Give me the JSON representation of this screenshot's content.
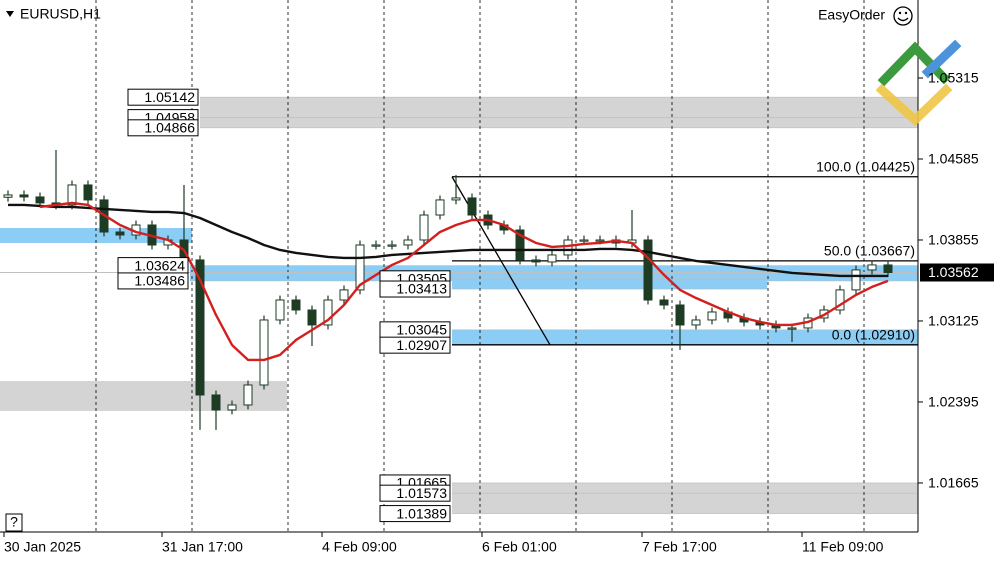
{
  "chart_data": {
    "type": "candlestick",
    "title": "EURUSD,H1",
    "brand": "EasyOrder",
    "help": "?",
    "candle_color": "#1e3b24",
    "open": [
      1.0424,
      1.04261,
      1.04243,
      1.04189,
      1.04171,
      1.04351,
      1.04216,
      1.03927,
      1.039,
      1.0399,
      1.0381,
      1.03855,
      1.03675,
      1.02458,
      1.02323,
      1.02368,
      1.02548,
      1.03134,
      1.03314,
      1.03224,
      1.03089,
      1.03314,
      1.03405,
      1.0381,
      1.0381,
      1.0381,
      1.03855,
      1.0408,
      1.04216,
      1.04234,
      1.0408,
      1.0399,
      1.03945,
      1.03675,
      1.03657,
      1.0372,
      1.03855,
      1.03855,
      1.03855,
      1.03828,
      1.03855,
      1.03314,
      1.03269,
      1.03089,
      1.03134,
      1.03206,
      1.03152,
      1.03116,
      1.03089,
      1.03062,
      1.03062,
      1.03152,
      1.03224,
      1.03405,
      1.03585,
      1.0363
    ],
    "high": [
      1.04301,
      1.04301,
      1.04283,
      1.04666,
      1.04391,
      1.04391,
      1.04256,
      1.03967,
      1.0403,
      1.0403,
      1.03895,
      1.04351,
      1.03715,
      1.02498,
      1.02408,
      1.02588,
      1.03174,
      1.03354,
      1.03354,
      1.03264,
      1.03354,
      1.03445,
      1.0385,
      1.0385,
      1.0385,
      1.03895,
      1.0412,
      1.04256,
      1.04441,
      1.04274,
      1.0412,
      1.0403,
      1.03985,
      1.03715,
      1.0376,
      1.03895,
      1.03895,
      1.03895,
      1.03895,
      1.04125,
      1.03895,
      1.03354,
      1.03309,
      1.03174,
      1.03246,
      1.03246,
      1.03192,
      1.03156,
      1.03129,
      1.03102,
      1.03192,
      1.03264,
      1.03445,
      1.03625,
      1.0367,
      1.0367
    ],
    "low": [
      1.042,
      1.04203,
      1.04149,
      1.04131,
      1.04131,
      1.04176,
      1.03887,
      1.0386,
      1.0386,
      1.0377,
      1.0377,
      1.03635,
      1.02143,
      1.02143,
      1.02283,
      1.02328,
      1.02508,
      1.03094,
      1.03184,
      1.02899,
      1.03049,
      1.03274,
      1.03365,
      1.0377,
      1.0377,
      1.0377,
      1.03815,
      1.0404,
      1.04176,
      1.0404,
      1.0395,
      1.03905,
      1.03635,
      1.03617,
      1.03617,
      1.0368,
      1.03815,
      1.03815,
      1.03788,
      1.03788,
      1.03274,
      1.03229,
      1.02864,
      1.03049,
      1.03094,
      1.03112,
      1.03076,
      1.03049,
      1.03022,
      1.02936,
      1.03022,
      1.03112,
      1.03184,
      1.03365,
      1.03545,
      1.03522
    ],
    "close": [
      1.04261,
      1.04243,
      1.04189,
      1.04171,
      1.04351,
      1.04216,
      1.03927,
      1.039,
      1.0399,
      1.0381,
      1.03855,
      1.03675,
      1.02458,
      1.02323,
      1.02368,
      1.02548,
      1.03134,
      1.03314,
      1.03224,
      1.03089,
      1.03314,
      1.03405,
      1.0381,
      1.0381,
      1.0381,
      1.03855,
      1.0408,
      1.04216,
      1.04234,
      1.0408,
      1.0399,
      1.03945,
      1.03675,
      1.03657,
      1.0372,
      1.03855,
      1.03855,
      1.03855,
      1.03828,
      1.03855,
      1.03314,
      1.03269,
      1.03089,
      1.03134,
      1.03206,
      1.03152,
      1.03116,
      1.03089,
      1.03062,
      1.03062,
      1.03152,
      1.03224,
      1.03405,
      1.03585,
      1.0363,
      1.03562
    ],
    "overlays": [
      {
        "color": "#111111",
        "values": [
          1.04171,
          1.04171,
          1.04162,
          1.04153,
          1.04153,
          1.04144,
          1.04135,
          1.04126,
          1.04117,
          1.04108,
          1.04108,
          1.04098,
          1.04053,
          1.0399,
          1.03927,
          1.03873,
          1.0381,
          1.03765,
          1.03738,
          1.0372,
          1.03702,
          1.03693,
          1.03693,
          1.03702,
          1.0372,
          1.03729,
          1.03738,
          1.03747,
          1.03756,
          1.03765,
          1.03765,
          1.03765,
          1.03765,
          1.03765,
          1.03765,
          1.03765,
          1.03765,
          1.03774,
          1.03774,
          1.03765,
          1.03747,
          1.0372,
          1.03693,
          1.03666,
          1.03648,
          1.0363,
          1.03612,
          1.03594,
          1.03576,
          1.03558,
          1.03549,
          1.0354,
          1.03531,
          1.03531,
          1.03531,
          1.03531
        ]
      },
      {
        "color": "#d41f1f",
        "values": [
          null,
          null,
          1.04153,
          1.04171,
          1.04189,
          1.04171,
          1.0408,
          1.0399,
          1.03927,
          1.03891,
          1.03855,
          1.03765,
          1.03495,
          1.03179,
          1.02909,
          1.02774,
          1.02774,
          1.02819,
          1.02954,
          1.03044,
          1.03134,
          1.03269,
          1.0345,
          1.0354,
          1.0363,
          1.03693,
          1.0381,
          1.03927,
          1.0399,
          1.04035,
          1.04035,
          1.0399,
          1.039,
          1.03828,
          1.03792,
          1.03801,
          1.03819,
          1.03828,
          1.03846,
          1.03828,
          1.03693,
          1.0354,
          1.03405,
          1.03332,
          1.03269,
          1.03206,
          1.03152,
          1.03116,
          1.03089,
          1.03089,
          1.03116,
          1.03179,
          1.03269,
          1.0336,
          1.03432,
          1.03486
        ]
      }
    ],
    "last_price": 1.03562,
    "ylim": [
      1.01223,
      1.06018
    ],
    "yticks": [
      1.01665,
      1.02395,
      1.03125,
      1.03855,
      1.04585,
      1.05315
    ],
    "xlim": [
      -0.5,
      56.875
    ],
    "xticks": [
      {
        "value": -0.25,
        "label": "30 Jan 2025"
      },
      {
        "value": 9.625,
        "label": "31 Jan 17:00"
      },
      {
        "value": 19.625,
        "label": "4 Feb 09:00"
      },
      {
        "value": 29.625,
        "label": "6 Feb 01:00"
      },
      {
        "value": 39.625,
        "label": "7 Feb 17:00"
      },
      {
        "value": 49.625,
        "label": "11 Feb 09:00"
      }
    ],
    "xgrid": [
      5.5,
      11.5,
      17.5,
      23.5,
      29.5,
      35.5,
      41.5,
      47.5,
      53.5
    ],
    "zones": [
      {
        "color": "#d4d4d4",
        "x_start": 12,
        "labels": [
          1.05142,
          1.04958,
          1.04866
        ]
      },
      {
        "color": "#8ccdf5",
        "x_end": 11.5,
        "low": 1.03828,
        "high": 1.03963
      },
      {
        "color": "#8ccdf5",
        "x_start": 11.375,
        "labels": [
          1.03624,
          1.03486
        ]
      },
      {
        "color": "#d4d4d4",
        "x_end": 17.45,
        "low": 1.02314,
        "high": 1.02584
      },
      {
        "color": "#8ccdf5",
        "x_start": 27.75,
        "x_end": 47.45,
        "labels": [
          1.03505,
          1.03413
        ]
      },
      {
        "color": "#8ccdf5",
        "x_start": 27.75,
        "labels": [
          1.03045,
          1.02907
        ]
      },
      {
        "color": "#d4d4d4",
        "x_start": 27.75,
        "labels": [
          1.01665,
          1.01573,
          1.01389
        ]
      }
    ],
    "fib": {
      "x_start": 27.75,
      "x_trend_end": 33.875,
      "levels": [
        {
          "value": 1.04425,
          "label": "100.0 (1.04425)"
        },
        {
          "value": 1.03667,
          "label": "50.0 (1.03667)"
        },
        {
          "value": 1.0291,
          "label": "0.0 (1.02910)"
        }
      ]
    }
  }
}
